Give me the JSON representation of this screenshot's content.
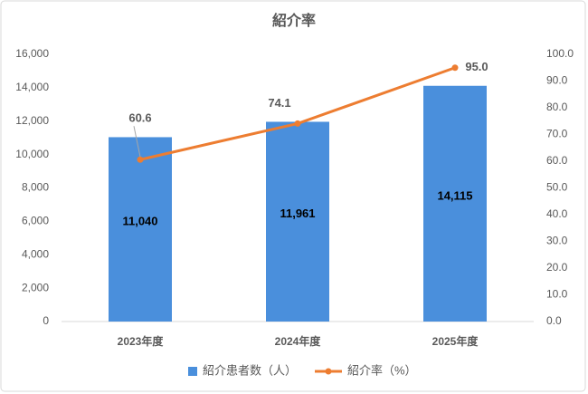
{
  "chart_data": {
    "type": "bar",
    "title": "紹介率",
    "categories": [
      "2023年度",
      "2024年度",
      "2025年度"
    ],
    "series": [
      {
        "name": "紹介患者数（人）",
        "type": "bar",
        "color": "#4a8fdc",
        "values": [
          11040,
          11961,
          14115
        ],
        "value_labels": [
          "11,040",
          "11,961",
          "14,115"
        ]
      },
      {
        "name": "紹介率（%）",
        "type": "line",
        "axis": "y2",
        "color": "#ed7d31",
        "values": [
          60.6,
          74.1,
          95.0
        ],
        "value_labels": [
          "60.6",
          "74.1",
          "95.0"
        ]
      }
    ],
    "ylim": [
      0,
      16000
    ],
    "yticks": [
      0,
      {
        "value": 2000,
        "label": "2,000"
      },
      {
        "value": 4000,
        "label": "4,000"
      },
      {
        "value": 6000,
        "label": "6,000"
      },
      {
        "value": 8000,
        "label": "8,000"
      },
      {
        "value": 10000,
        "label": "10,000"
      },
      {
        "value": 12000,
        "label": "12,000"
      },
      {
        "value": 14000,
        "label": "14,000"
      },
      {
        "value": 16000,
        "label": "16,000"
      }
    ],
    "y2lim": [
      0,
      100
    ],
    "y2ticks": [
      {
        "value": 0,
        "label": "0.0"
      },
      {
        "value": 10,
        "label": "10.0"
      },
      {
        "value": 20,
        "label": "20.0"
      },
      {
        "value": 30,
        "label": "30.0"
      },
      {
        "value": 40,
        "label": "40.0"
      },
      {
        "value": 50,
        "label": "50.0"
      },
      {
        "value": 60,
        "label": "60.0"
      },
      {
        "value": 70,
        "label": "70.0"
      },
      {
        "value": 80,
        "label": "80.0"
      },
      {
        "value": 90,
        "label": "90.0"
      },
      {
        "value": 100,
        "label": "100.0"
      }
    ],
    "grid": false,
    "legend": "bottom"
  }
}
